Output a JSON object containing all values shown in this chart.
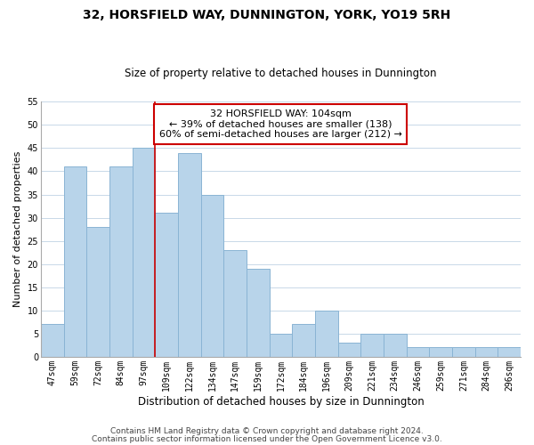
{
  "title": "32, HORSFIELD WAY, DUNNINGTON, YORK, YO19 5RH",
  "subtitle": "Size of property relative to detached houses in Dunnington",
  "xlabel": "Distribution of detached houses by size in Dunnington",
  "ylabel": "Number of detached properties",
  "bin_labels": [
    "47sqm",
    "59sqm",
    "72sqm",
    "84sqm",
    "97sqm",
    "109sqm",
    "122sqm",
    "134sqm",
    "147sqm",
    "159sqm",
    "172sqm",
    "184sqm",
    "196sqm",
    "209sqm",
    "221sqm",
    "234sqm",
    "246sqm",
    "259sqm",
    "271sqm",
    "284sqm",
    "296sqm"
  ],
  "bar_heights": [
    7,
    41,
    28,
    41,
    45,
    31,
    44,
    35,
    23,
    19,
    5,
    7,
    10,
    3,
    5,
    5,
    2,
    2,
    2,
    2,
    2
  ],
  "bar_color": "#b8d4ea",
  "bar_edge_color": "#8ab4d4",
  "annotation_box_text": "32 HORSFIELD WAY: 104sqm\n← 39% of detached houses are smaller (138)\n60% of semi-detached houses are larger (212) →",
  "annotation_box_edge_color": "#cc0000",
  "vline_x_index": 4.5,
  "vline_color": "#cc0000",
  "ylim": [
    0,
    55
  ],
  "yticks": [
    0,
    5,
    10,
    15,
    20,
    25,
    30,
    35,
    40,
    45,
    50,
    55
  ],
  "footer_line1": "Contains HM Land Registry data © Crown copyright and database right 2024.",
  "footer_line2": "Contains public sector information licensed under the Open Government Licence v3.0.",
  "bg_color": "#ffffff",
  "grid_color": "#c8d8e8",
  "title_fontsize": 10,
  "subtitle_fontsize": 8.5,
  "xlabel_fontsize": 8.5,
  "ylabel_fontsize": 8,
  "annotation_fontsize": 8,
  "footer_fontsize": 6.5,
  "tick_fontsize": 7
}
